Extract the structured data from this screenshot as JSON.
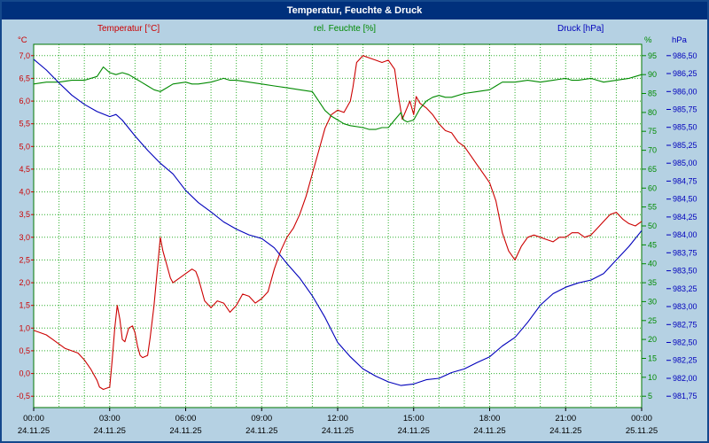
{
  "window_title": "Temperatur, Feuchte & Druck",
  "colors": {
    "background": "#b5d1e3",
    "titlebar": "#00307c",
    "window_border": "#14488c",
    "plot_background": "#ffffff",
    "plot_border": "#007700",
    "grid": "#2eaf2e",
    "temperature": "#cc0000",
    "humidity": "#008a00",
    "pressure": "#0000bb",
    "axis_text": "#000000"
  },
  "chart_data": {
    "type": "line",
    "title": "Temperatur, Feuchte & Druck",
    "x_axis": {
      "range": [
        0,
        24
      ],
      "grid_every_hours": 1,
      "tick_hours": [
        0,
        3,
        6,
        9,
        12,
        15,
        18,
        21,
        24
      ],
      "tick_labels": [
        "00:00",
        "03:00",
        "06:00",
        "09:00",
        "12:00",
        "15:00",
        "18:00",
        "21:00",
        "00:00"
      ],
      "date_labels": [
        "24.11.25",
        "24.11.25",
        "24.11.25",
        "24.11.25",
        "24.11.25",
        "24.11.25",
        "24.11.25",
        "24.11.25",
        "25.11.25"
      ]
    },
    "axes": {
      "temperature": {
        "title": "Temperatur [°C]",
        "unit": "°C",
        "side": "left",
        "min": -0.75,
        "max": 7.25,
        "tick_values": [
          7.0,
          6.5,
          6.0,
          5.5,
          5.0,
          4.5,
          4.0,
          3.5,
          3.0,
          2.5,
          2.0,
          1.5,
          1.0,
          0.5,
          0.0,
          -0.5
        ],
        "tick_labels": [
          "7,0",
          "6,5",
          "6,0",
          "5,5",
          "5,0",
          "4,5",
          "4,0",
          "3,5",
          "3,0",
          "2,5",
          "2,0",
          "1,5",
          "1,0",
          "0,5",
          "0,0",
          "-0,5"
        ]
      },
      "humidity": {
        "title": "rel. Feuchte [%]",
        "unit": "%",
        "side": "right-inner",
        "min": 2,
        "max": 98,
        "tick_values": [
          95,
          90,
          85,
          80,
          75,
          70,
          65,
          60,
          55,
          50,
          45,
          40,
          35,
          30,
          25,
          20,
          15,
          10,
          5
        ],
        "tick_labels": [
          "95",
          "90",
          "85",
          "80",
          "75",
          "70",
          "65",
          "60",
          "55",
          "50",
          "45",
          "40",
          "35",
          "30",
          "25",
          "20",
          "15",
          "10",
          "5"
        ]
      },
      "pressure": {
        "title": "Druck [hPa]",
        "unit": "hPa",
        "side": "right-outer",
        "min": 981.5917,
        "max": 986.6583,
        "tick_values": [
          986.5,
          986.25,
          986.0,
          985.75,
          985.5,
          985.25,
          985.0,
          984.75,
          984.5,
          984.25,
          984.0,
          983.75,
          983.5,
          983.25,
          983.0,
          982.75,
          982.5,
          982.25,
          982.0,
          981.75
        ],
        "tick_labels": [
          "986,50",
          "986,25",
          "986,00",
          "985,75",
          "985,50",
          "985,25",
          "985,00",
          "984,75",
          "984,50",
          "984,25",
          "984,00",
          "983,75",
          "983,50",
          "983,25",
          "983,00",
          "982,75",
          "982,50",
          "982,25",
          "982,00",
          "981,75"
        ]
      }
    },
    "series": [
      {
        "name": "Temperatur [°C]",
        "axis": "temperature",
        "color": "#cc0000",
        "points": [
          [
            0,
            0.95
          ],
          [
            0.25,
            0.9
          ],
          [
            0.5,
            0.85
          ],
          [
            0.75,
            0.75
          ],
          [
            1,
            0.65
          ],
          [
            1.25,
            0.55
          ],
          [
            1.5,
            0.5
          ],
          [
            1.75,
            0.45
          ],
          [
            2,
            0.3
          ],
          [
            2.25,
            0.1
          ],
          [
            2.5,
            -0.15
          ],
          [
            2.6,
            -0.3
          ],
          [
            2.75,
            -0.35
          ],
          [
            3,
            -0.3
          ],
          [
            3.1,
            0.3
          ],
          [
            3.2,
            1.0
          ],
          [
            3.3,
            1.5
          ],
          [
            3.4,
            1.2
          ],
          [
            3.5,
            0.75
          ],
          [
            3.6,
            0.7
          ],
          [
            3.75,
            1.0
          ],
          [
            3.9,
            1.05
          ],
          [
            4,
            0.9
          ],
          [
            4.1,
            0.6
          ],
          [
            4.2,
            0.4
          ],
          [
            4.3,
            0.35
          ],
          [
            4.5,
            0.4
          ],
          [
            4.6,
            0.8
          ],
          [
            4.75,
            1.5
          ],
          [
            4.9,
            2.4
          ],
          [
            5,
            3.0
          ],
          [
            5.1,
            2.7
          ],
          [
            5.25,
            2.4
          ],
          [
            5.4,
            2.1
          ],
          [
            5.5,
            2.0
          ],
          [
            5.75,
            2.1
          ],
          [
            6,
            2.2
          ],
          [
            6.25,
            2.3
          ],
          [
            6.4,
            2.25
          ],
          [
            6.5,
            2.1
          ],
          [
            6.75,
            1.6
          ],
          [
            7,
            1.45
          ],
          [
            7.25,
            1.6
          ],
          [
            7.5,
            1.55
          ],
          [
            7.75,
            1.35
          ],
          [
            8,
            1.5
          ],
          [
            8.25,
            1.75
          ],
          [
            8.5,
            1.7
          ],
          [
            8.75,
            1.55
          ],
          [
            9,
            1.65
          ],
          [
            9.25,
            1.8
          ],
          [
            9.5,
            2.3
          ],
          [
            9.75,
            2.7
          ],
          [
            10,
            3.0
          ],
          [
            10.25,
            3.2
          ],
          [
            10.5,
            3.5
          ],
          [
            10.75,
            3.9
          ],
          [
            11,
            4.4
          ],
          [
            11.25,
            4.9
          ],
          [
            11.5,
            5.4
          ],
          [
            11.75,
            5.7
          ],
          [
            12,
            5.8
          ],
          [
            12.25,
            5.75
          ],
          [
            12.5,
            6.0
          ],
          [
            12.6,
            6.3
          ],
          [
            12.75,
            6.85
          ],
          [
            13,
            7.0
          ],
          [
            13.25,
            6.95
          ],
          [
            13.5,
            6.9
          ],
          [
            13.75,
            6.85
          ],
          [
            14,
            6.9
          ],
          [
            14.25,
            6.7
          ],
          [
            14.4,
            6.1
          ],
          [
            14.55,
            5.6
          ],
          [
            14.7,
            5.8
          ],
          [
            14.85,
            6.0
          ],
          [
            15,
            5.7
          ],
          [
            15.1,
            6.1
          ],
          [
            15.25,
            5.95
          ],
          [
            15.5,
            5.85
          ],
          [
            15.75,
            5.7
          ],
          [
            16,
            5.5
          ],
          [
            16.25,
            5.35
          ],
          [
            16.5,
            5.3
          ],
          [
            16.75,
            5.1
          ],
          [
            17,
            5.0
          ],
          [
            17.25,
            4.8
          ],
          [
            17.5,
            4.6
          ],
          [
            17.75,
            4.4
          ],
          [
            18,
            4.2
          ],
          [
            18.25,
            3.8
          ],
          [
            18.5,
            3.1
          ],
          [
            18.75,
            2.7
          ],
          [
            19,
            2.5
          ],
          [
            19.25,
            2.8
          ],
          [
            19.5,
            3.0
          ],
          [
            19.75,
            3.05
          ],
          [
            20,
            3.0
          ],
          [
            20.25,
            2.95
          ],
          [
            20.5,
            2.9
          ],
          [
            20.75,
            3.0
          ],
          [
            21,
            3.0
          ],
          [
            21.25,
            3.1
          ],
          [
            21.5,
            3.1
          ],
          [
            21.75,
            3.0
          ],
          [
            22,
            3.05
          ],
          [
            22.25,
            3.2
          ],
          [
            22.5,
            3.35
          ],
          [
            22.75,
            3.5
          ],
          [
            23,
            3.55
          ],
          [
            23.25,
            3.4
          ],
          [
            23.5,
            3.3
          ],
          [
            23.75,
            3.25
          ],
          [
            24,
            3.35
          ]
        ]
      },
      {
        "name": "rel. Feuchte [%]",
        "axis": "humidity",
        "color": "#008a00",
        "points": [
          [
            0,
            87.5
          ],
          [
            0.5,
            88
          ],
          [
            1,
            88
          ],
          [
            1.5,
            88.5
          ],
          [
            2,
            88.5
          ],
          [
            2.5,
            89.5
          ],
          [
            2.75,
            92
          ],
          [
            3,
            90.5
          ],
          [
            3.25,
            90
          ],
          [
            3.5,
            90.5
          ],
          [
            3.75,
            90
          ],
          [
            4,
            89
          ],
          [
            4.25,
            88
          ],
          [
            4.5,
            87
          ],
          [
            4.75,
            86
          ],
          [
            5,
            85.5
          ],
          [
            5.25,
            86.5
          ],
          [
            5.5,
            87.5
          ],
          [
            6,
            88
          ],
          [
            6.25,
            87.5
          ],
          [
            6.5,
            87.5
          ],
          [
            7,
            88
          ],
          [
            7.25,
            88.5
          ],
          [
            7.5,
            89
          ],
          [
            7.75,
            88.5
          ],
          [
            8,
            88.5
          ],
          [
            8.5,
            88
          ],
          [
            9,
            87.5
          ],
          [
            9.5,
            87
          ],
          [
            10,
            86.5
          ],
          [
            10.5,
            86
          ],
          [
            11,
            85.5
          ],
          [
            11.25,
            83
          ],
          [
            11.5,
            80.5
          ],
          [
            11.75,
            79
          ],
          [
            12,
            78
          ],
          [
            12.25,
            77
          ],
          [
            12.5,
            76.5
          ],
          [
            13,
            76
          ],
          [
            13.25,
            75.5
          ],
          [
            13.5,
            75.5
          ],
          [
            13.75,
            76
          ],
          [
            14,
            76
          ],
          [
            14.25,
            78
          ],
          [
            14.5,
            80
          ],
          [
            14.6,
            78
          ],
          [
            14.75,
            77.5
          ],
          [
            15,
            78
          ],
          [
            15.25,
            81
          ],
          [
            15.5,
            83
          ],
          [
            15.75,
            84
          ],
          [
            16,
            84.5
          ],
          [
            16.25,
            84
          ],
          [
            16.5,
            84
          ],
          [
            17,
            85
          ],
          [
            17.5,
            85.5
          ],
          [
            18,
            86
          ],
          [
            18.25,
            87
          ],
          [
            18.5,
            88
          ],
          [
            19,
            88
          ],
          [
            19.5,
            88.5
          ],
          [
            20,
            88
          ],
          [
            20.5,
            88.5
          ],
          [
            21,
            89
          ],
          [
            21.25,
            88.5
          ],
          [
            21.5,
            88.5
          ],
          [
            22,
            89
          ],
          [
            22.25,
            88.5
          ],
          [
            22.5,
            88
          ],
          [
            23,
            88.5
          ],
          [
            23.5,
            89
          ],
          [
            23.75,
            89.5
          ],
          [
            24,
            90
          ]
        ]
      },
      {
        "name": "Druck [hPa]",
        "axis": "pressure",
        "color": "#0000bb",
        "points": [
          [
            0,
            986.45
          ],
          [
            0.5,
            986.3
          ],
          [
            1,
            986.12
          ],
          [
            1.5,
            985.95
          ],
          [
            2,
            985.82
          ],
          [
            2.5,
            985.72
          ],
          [
            3,
            985.65
          ],
          [
            3.25,
            985.68
          ],
          [
            3.5,
            985.6
          ],
          [
            4,
            985.38
          ],
          [
            4.5,
            985.18
          ],
          [
            5,
            985.0
          ],
          [
            5.5,
            984.85
          ],
          [
            6,
            984.62
          ],
          [
            6.5,
            984.45
          ],
          [
            7,
            984.32
          ],
          [
            7.5,
            984.18
          ],
          [
            8,
            984.08
          ],
          [
            8.5,
            984.0
          ],
          [
            9,
            983.95
          ],
          [
            9.5,
            983.82
          ],
          [
            10,
            983.6
          ],
          [
            10.5,
            983.4
          ],
          [
            11,
            983.15
          ],
          [
            11.5,
            982.85
          ],
          [
            12,
            982.5
          ],
          [
            12.5,
            982.3
          ],
          [
            13,
            982.13
          ],
          [
            13.5,
            982.03
          ],
          [
            14,
            981.95
          ],
          [
            14.5,
            981.9
          ],
          [
            15,
            981.92
          ],
          [
            15.5,
            981.98
          ],
          [
            16,
            982.0
          ],
          [
            16.5,
            982.08
          ],
          [
            17,
            982.13
          ],
          [
            17.5,
            982.22
          ],
          [
            18,
            982.3
          ],
          [
            18.5,
            982.45
          ],
          [
            19,
            982.57
          ],
          [
            19.5,
            982.78
          ],
          [
            20,
            983.02
          ],
          [
            20.5,
            983.18
          ],
          [
            21,
            983.27
          ],
          [
            21.5,
            983.33
          ],
          [
            22,
            983.37
          ],
          [
            22.5,
            983.46
          ],
          [
            23,
            983.65
          ],
          [
            23.5,
            983.84
          ],
          [
            24,
            984.06
          ]
        ]
      }
    ]
  }
}
